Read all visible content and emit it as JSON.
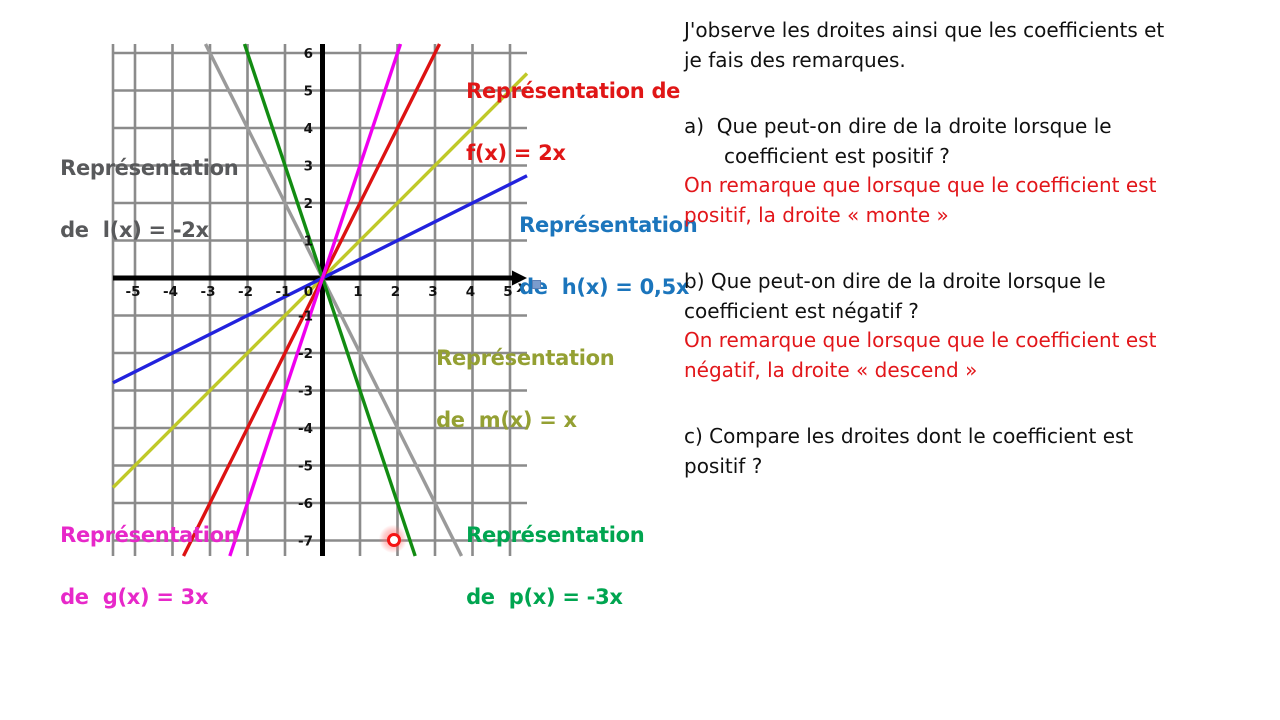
{
  "chart_data": {
    "type": "line",
    "title": "",
    "x_range": [
      -5.5,
      5.5
    ],
    "y_range": [
      -7.4,
      6.2
    ],
    "grid": true,
    "x_axis_label": "x",
    "x_ticks": [
      {
        "v": -5,
        "t": "-5"
      },
      {
        "v": -4,
        "t": "-4"
      },
      {
        "v": -3,
        "t": "-3"
      },
      {
        "v": -2,
        "t": "-2"
      },
      {
        "v": -1,
        "t": "-1"
      },
      {
        "v": 0,
        "t": "0"
      },
      {
        "v": 1,
        "t": "1"
      },
      {
        "v": 2,
        "t": "2"
      },
      {
        "v": 3,
        "t": "3"
      },
      {
        "v": 4,
        "t": "4"
      },
      {
        "v": 5,
        "t": "5"
      }
    ],
    "y_ticks": [
      {
        "v": 6,
        "t": "6"
      },
      {
        "v": 5,
        "t": "5"
      },
      {
        "v": 4,
        "t": "4"
      },
      {
        "v": 3,
        "t": "3"
      },
      {
        "v": 2,
        "t": "2"
      },
      {
        "v": 1,
        "t": "1"
      },
      {
        "v": -1,
        "t": "-1"
      },
      {
        "v": -2,
        "t": "-2"
      },
      {
        "v": -3,
        "t": "-3"
      },
      {
        "v": -4,
        "t": "-4"
      },
      {
        "v": -5,
        "t": "-5"
      },
      {
        "v": -6,
        "t": "-6"
      },
      {
        "v": -7,
        "t": "-7"
      }
    ],
    "series": [
      {
        "name": "l(x) = -2x",
        "slope": -2,
        "color": "#9a9a9a"
      },
      {
        "name": "p(x) = -3x",
        "slope": -3,
        "color": "#128c12"
      },
      {
        "name": "m(x) = x",
        "slope": 1,
        "color": "#c0c928"
      },
      {
        "name": "h(x) = 0,5x",
        "slope": 0.5,
        "color": "#2222dd"
      },
      {
        "name": "f(x) = 2x",
        "slope": 2,
        "color": "#dd1212"
      },
      {
        "name": "g(x) = 3x",
        "slope": 3,
        "color": "#ef00ef"
      }
    ]
  },
  "graph": {
    "labels": [
      {
        "line1": "Représentation",
        "line2": "de  l(x) = -2x",
        "color": "#58595b"
      },
      {
        "line1": "Représentation de",
        "line2": "f(x) = 2x",
        "color": "#e01616"
      },
      {
        "line1": "Représentation",
        "line2": "de  h(x) = 0,5x",
        "color": "#1b75bc"
      },
      {
        "line1": "Représentation",
        "line2": "de  m(x) = x",
        "color": "#94a033"
      },
      {
        "line1": "Représentation",
        "line2": "de  g(x) = 3x",
        "color": "#e728c9"
      },
      {
        "line1": "Représentation",
        "line2": "de  p(x) = -3x",
        "color": "#00a550"
      }
    ]
  },
  "panel": {
    "paragraphs": [
      {
        "text": "J'observe les droites ainsi que les coefficients et\nje fais des remarques.",
        "color": "#111111"
      },
      {
        "text": "a)  Que peut-on dire de la droite lorsque le\ncoefficient est positif ?",
        "color": "#111111"
      },
      {
        "text": "On remarque que lorsque que le coefficient est\npositif, la droite « monte »",
        "color": "#e2161a"
      },
      {
        "text": "b) Que peut-on dire de la droite lorsque le\ncoefficient est négatif ?",
        "color": "#111111"
      },
      {
        "text": "On remarque que lorsque que le coefficient est\nnégatif, la droite « descend »",
        "color": "#e2161a"
      },
      {
        "text": "c) Compare les droites dont le coefficient est\npositif ?",
        "color": "#111111"
      }
    ]
  }
}
